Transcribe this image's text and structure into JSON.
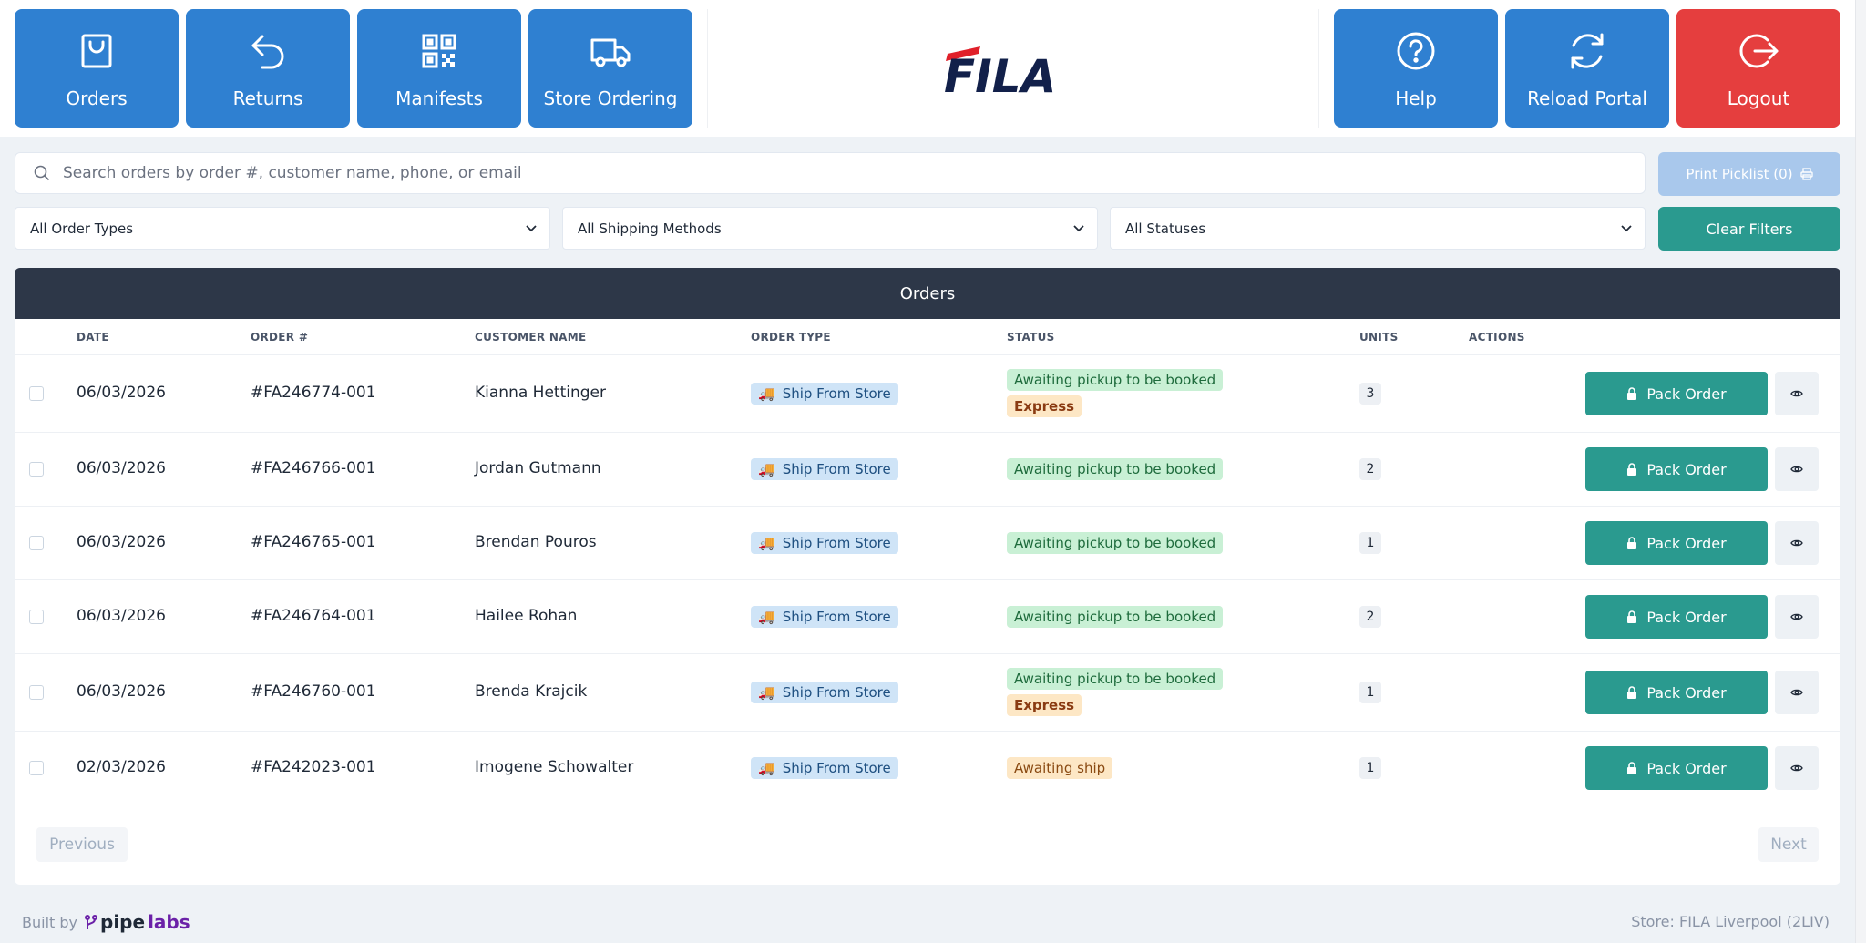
{
  "nav_left": [
    {
      "label": "Orders",
      "icon": "shopping-bag-icon"
    },
    {
      "label": "Returns",
      "icon": "return-arrow-icon"
    },
    {
      "label": "Manifests",
      "icon": "qr-code-icon"
    },
    {
      "label": "Store Ordering",
      "icon": "truck-icon"
    }
  ],
  "nav_right": [
    {
      "label": "Help",
      "icon": "help-circle-icon"
    },
    {
      "label": "Reload Portal",
      "icon": "refresh-icon"
    },
    {
      "label": "Logout",
      "icon": "logout-icon"
    }
  ],
  "logo": {
    "text": "FILA"
  },
  "search": {
    "placeholder": "Search orders by order #, customer name, phone, or email"
  },
  "print_picklist": {
    "label": "Print Picklist (0)"
  },
  "filters": {
    "order_types": "All Order Types",
    "shipping_methods": "All Shipping Methods",
    "statuses": "All Statuses",
    "clear_label": "Clear Filters"
  },
  "table": {
    "title": "Orders",
    "columns": {
      "date": "DATE",
      "order_no": "ORDER #",
      "customer": "CUSTOMER NAME",
      "order_type": "ORDER TYPE",
      "status": "STATUS",
      "units": "UNITS",
      "actions": "ACTIONS"
    },
    "pack_label": "Pack Order",
    "rows": [
      {
        "date": "06/03/2026",
        "order": "#FA246774-001",
        "customer": "Kianna Hettinger",
        "type": "Ship From Store",
        "status": "Awaiting pickup to be booked",
        "express": "Express",
        "units": "3"
      },
      {
        "date": "06/03/2026",
        "order": "#FA246766-001",
        "customer": "Jordan Gutmann",
        "type": "Ship From Store",
        "status": "Awaiting pickup to be booked",
        "express": "",
        "units": "2"
      },
      {
        "date": "06/03/2026",
        "order": "#FA246765-001",
        "customer": "Brendan Pouros",
        "type": "Ship From Store",
        "status": "Awaiting pickup to be booked",
        "express": "",
        "units": "1"
      },
      {
        "date": "06/03/2026",
        "order": "#FA246764-001",
        "customer": "Hailee Rohan",
        "type": "Ship From Store",
        "status": "Awaiting pickup to be booked",
        "express": "",
        "units": "2"
      },
      {
        "date": "06/03/2026",
        "order": "#FA246760-001",
        "customer": "Brenda Krajcik",
        "type": "Ship From Store",
        "status": "Awaiting pickup to be booked",
        "express": "Express",
        "units": "1"
      },
      {
        "date": "02/03/2026",
        "order": "#FA242023-001",
        "customer": "Imogene Schowalter",
        "type": "Ship From Store",
        "status": "Awaiting ship",
        "express": "",
        "units": "1"
      }
    ]
  },
  "pagination": {
    "previous": "Previous",
    "next": "Next"
  },
  "footer": {
    "built_by": "Built by",
    "brand_pipe": "pipe",
    "brand_labs": "labs",
    "store": "Store: FILA Liverpool (2LIV)"
  },
  "colors": {
    "nav_blue": "#2f80d1",
    "logout_red": "#e53e3e",
    "teal": "#2a9a8f",
    "table_header": "#2d3748"
  }
}
